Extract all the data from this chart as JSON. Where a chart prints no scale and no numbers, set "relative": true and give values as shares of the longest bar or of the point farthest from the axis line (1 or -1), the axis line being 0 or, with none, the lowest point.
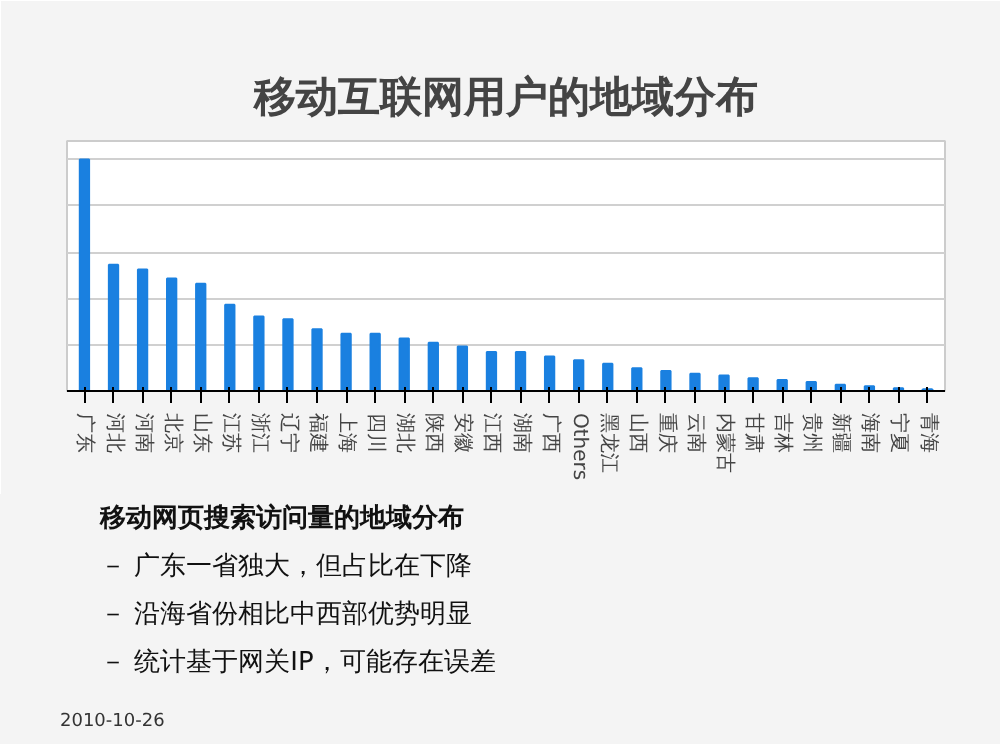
{
  "chart_data": {
    "type": "bar",
    "title": "移动互联网用户的地域分布",
    "categories": [
      "广东",
      "河北",
      "河南",
      "北京",
      "山东",
      "江苏",
      "浙江",
      "辽宁",
      "福建",
      "上海",
      "四川",
      "湖北",
      "陕西",
      "安徽",
      "江西",
      "湖南",
      "广西",
      "Others",
      "黑龙江",
      "山西",
      "重庆",
      "云南",
      "内蒙古",
      "甘肃",
      "吉林",
      "贵州",
      "新疆",
      "海南",
      "宁夏",
      "青海"
    ],
    "values": [
      1,
      0.545,
      0.525,
      0.486,
      0.463,
      0.373,
      0.322,
      0.31,
      0.267,
      0.247,
      0.247,
      0.227,
      0.208,
      0.192,
      0.169,
      0.169,
      0.149,
      0.133,
      0.118,
      0.098,
      0.086,
      0.075,
      0.067,
      0.055,
      0.047,
      0.039,
      0.027,
      0.02,
      0.012,
      0.008
    ],
    "color": "#1a80e0",
    "relative": true,
    "grid": "y",
    "annotations": [
      "移动网页搜索访问量的地域分布",
      "－ 广东一省独大，但占比在下降",
      "－ 沿海省份相比中西部优势明显",
      "－ 统计基于网关IP，可能存在误差",
      "2010-10-26"
    ]
  }
}
